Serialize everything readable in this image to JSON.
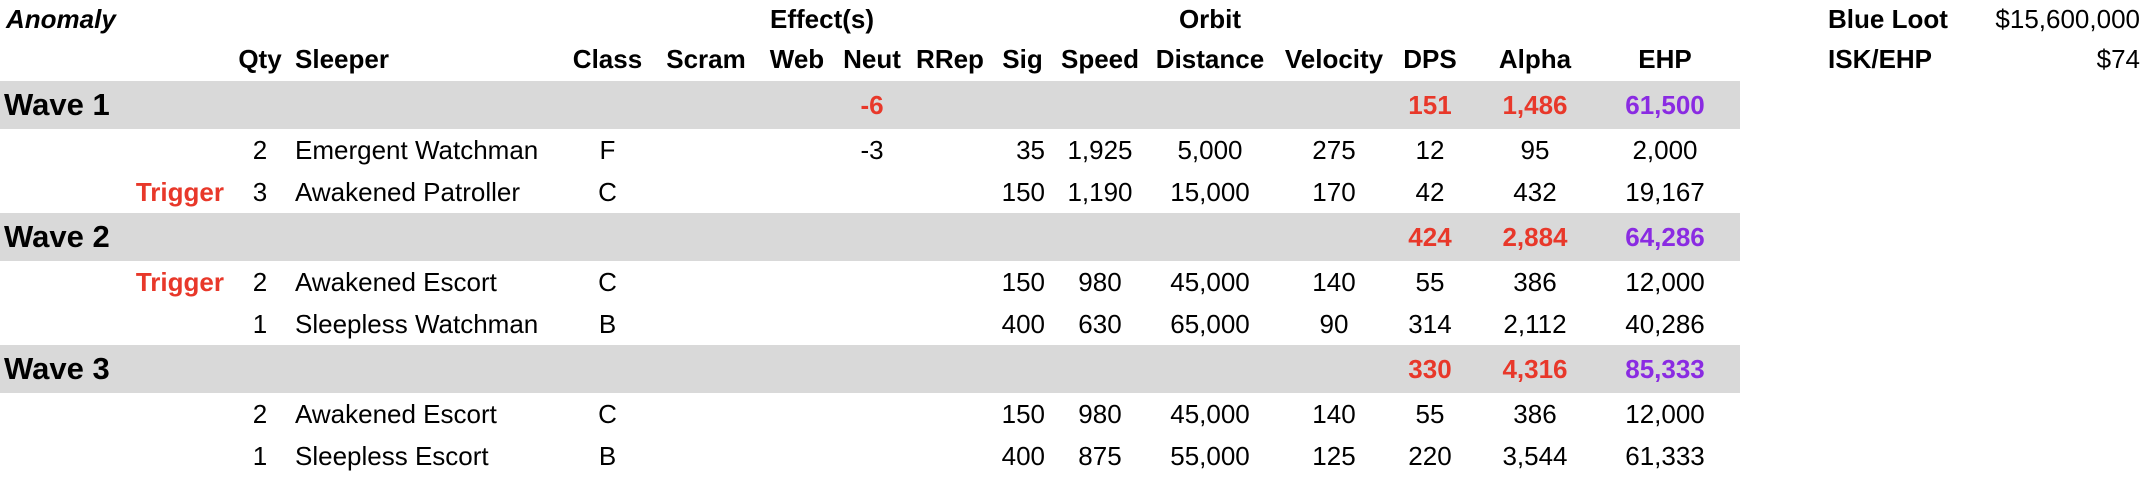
{
  "header": {
    "anomaly_label": "Anomaly",
    "effects_label": "Effect(s)",
    "orbit_label": "Orbit",
    "columns": {
      "qty": "Qty",
      "sleeper": "Sleeper",
      "class": "Class",
      "scram": "Scram",
      "web": "Web",
      "neut": "Neut",
      "rrep": "RRep",
      "sig": "Sig",
      "speed": "Speed",
      "distance": "Distance",
      "velocity": "Velocity",
      "dps": "DPS",
      "alpha": "Alpha",
      "ehp": "EHP"
    }
  },
  "summary": {
    "blue_loot_label": "Blue Loot",
    "blue_loot_value": "$15,600,000",
    "isk_ehp_label": "ISK/EHP",
    "isk_ehp_value": "$74"
  },
  "colors": {
    "wave_bg": "#d9d9d9",
    "red": "#e8382a",
    "purple": "#8a2be2"
  },
  "waves": [
    {
      "label": "Wave 1",
      "neut": "-6",
      "dps": "151",
      "alpha": "1,486",
      "ehp": "61,500",
      "rows": [
        {
          "trigger": "",
          "qty": "2",
          "sleeper": "Emergent Watchman",
          "class": "F",
          "scram": "",
          "web": "",
          "neut": "-3",
          "rrep": "",
          "sig": "35",
          "speed": "1,925",
          "distance": "5,000",
          "velocity": "275",
          "dps": "12",
          "alpha": "95",
          "ehp": "2,000"
        },
        {
          "trigger": "Trigger",
          "qty": "3",
          "sleeper": "Awakened Patroller",
          "class": "C",
          "scram": "",
          "web": "",
          "neut": "",
          "rrep": "",
          "sig": "150",
          "speed": "1,190",
          "distance": "15,000",
          "velocity": "170",
          "dps": "42",
          "alpha": "432",
          "ehp": "19,167"
        }
      ]
    },
    {
      "label": "Wave 2",
      "neut": "",
      "dps": "424",
      "alpha": "2,884",
      "ehp": "64,286",
      "rows": [
        {
          "trigger": "Trigger",
          "qty": "2",
          "sleeper": "Awakened Escort",
          "class": "C",
          "scram": "",
          "web": "",
          "neut": "",
          "rrep": "",
          "sig": "150",
          "speed": "980",
          "distance": "45,000",
          "velocity": "140",
          "dps": "55",
          "alpha": "386",
          "ehp": "12,000"
        },
        {
          "trigger": "",
          "qty": "1",
          "sleeper": "Sleepless Watchman",
          "class": "B",
          "scram": "",
          "web": "",
          "neut": "",
          "rrep": "",
          "sig": "400",
          "speed": "630",
          "distance": "65,000",
          "velocity": "90",
          "dps": "314",
          "alpha": "2,112",
          "ehp": "40,286"
        }
      ]
    },
    {
      "label": "Wave 3",
      "neut": "",
      "dps": "330",
      "alpha": "4,316",
      "ehp": "85,333",
      "rows": [
        {
          "trigger": "",
          "qty": "2",
          "sleeper": "Awakened Escort",
          "class": "C",
          "scram": "",
          "web": "",
          "neut": "",
          "rrep": "",
          "sig": "150",
          "speed": "980",
          "distance": "45,000",
          "velocity": "140",
          "dps": "55",
          "alpha": "386",
          "ehp": "12,000"
        },
        {
          "trigger": "",
          "qty": "1",
          "sleeper": "Sleepless Escort",
          "class": "B",
          "scram": "",
          "web": "",
          "neut": "",
          "rrep": "",
          "sig": "400",
          "speed": "875",
          "distance": "55,000",
          "velocity": "125",
          "dps": "220",
          "alpha": "3,544",
          "ehp": "61,333"
        }
      ]
    }
  ]
}
